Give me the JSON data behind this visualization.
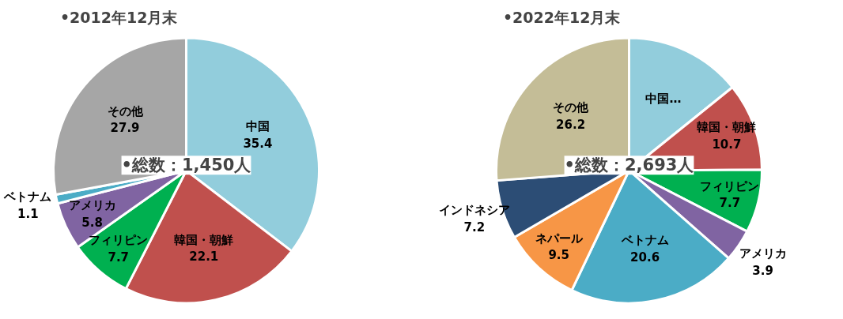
{
  "chart_data": [
    {
      "type": "pie",
      "title": "•2012年12月末",
      "categories": [
        "中国",
        "韓国・朝鮮",
        "フィリピン",
        "アメリカ",
        "ベトナム",
        "その他"
      ],
      "values": [
        35.4,
        22.1,
        7.7,
        5.8,
        1.1,
        27.9
      ],
      "colors": [
        "#92cddc",
        "#c0504d",
        "#00b050",
        "#8064a2",
        "#4bacc6",
        "#a6a6a6"
      ],
      "value_labels": [
        "35.4",
        "22.1",
        "7.7",
        "5.8",
        "1.1",
        "27.9"
      ],
      "annotations": [
        "•総数：1,450人"
      ]
    },
    {
      "type": "pie",
      "title": "•2022年12月末",
      "categories": [
        "中国…",
        "韓国・朝鮮",
        "フィリピン",
        "アメリカ",
        "ベトナム",
        "ネパール",
        "インドネシア",
        "その他"
      ],
      "values": [
        14.2,
        10.7,
        7.7,
        3.9,
        20.6,
        9.5,
        7.2,
        26.2
      ],
      "colors": [
        "#92cddc",
        "#c0504d",
        "#00b050",
        "#8064a2",
        "#4bacc6",
        "#f79646",
        "#2c4d75",
        "#c4bd97"
      ],
      "value_labels": [
        null,
        "10.7",
        "7.7",
        "3.9",
        "20.6",
        "9.5",
        "7.2",
        "26.2"
      ],
      "annotations": [
        "•総数：2,693人"
      ]
    }
  ]
}
